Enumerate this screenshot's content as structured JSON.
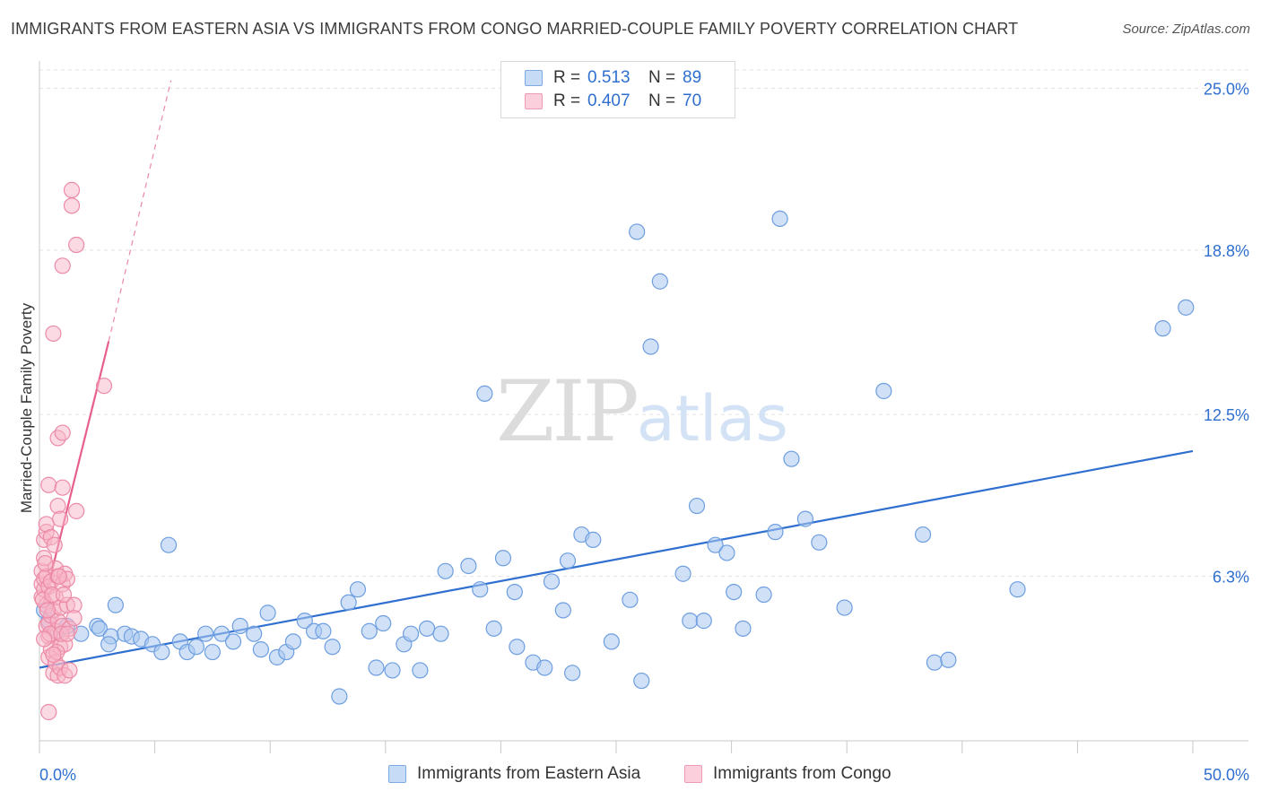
{
  "header": {
    "title": "IMMIGRANTS FROM EASTERN ASIA VS IMMIGRANTS FROM CONGO MARRIED-COUPLE FAMILY POVERTY CORRELATION CHART",
    "source": "Source: ZipAtlas.com"
  },
  "watermark": {
    "zip": "ZIP",
    "atlas": "atlas"
  },
  "legend": {
    "rows": [
      {
        "r_label": "R =",
        "r_value": "0.513",
        "n_label": "N =",
        "n_value": "89",
        "color": "#a9c8f0"
      },
      {
        "r_label": "R =",
        "r_value": "0.407",
        "n_label": "N =",
        "n_value": "70",
        "color": "#f7b6c8"
      }
    ]
  },
  "bottom_legend": {
    "items": [
      {
        "label": "Immigrants from Eastern Asia",
        "color": "#a9c8f0"
      },
      {
        "label": "Immigrants from Congo",
        "color": "#f7b6c8"
      }
    ]
  },
  "chart_data": {
    "type": "scatter",
    "title": "IMMIGRANTS FROM EASTERN ASIA VS IMMIGRANTS FROM CONGO MARRIED-COUPLE FAMILY POVERTY CORRELATION CHART",
    "xlabel": "",
    "ylabel": "Married-Couple Family Poverty",
    "xlim": [
      0,
      50
    ],
    "ylim": [
      0,
      25.7
    ],
    "x_tick_labels": [
      "0.0%",
      "50.0%"
    ],
    "y_ticks": [
      6.3,
      12.5,
      18.8,
      25.0
    ],
    "y_tick_labels": [
      "6.3%",
      "12.5%",
      "18.8%",
      "25.0%"
    ],
    "grid": true,
    "legend_position": "top-center",
    "colors": {
      "blue_fill": "#a9c8f0",
      "blue_stroke": "#6d9ee0",
      "blue_line": "#2f6fd0",
      "pink_fill": "#f7b6c8",
      "pink_stroke": "#ec8aa7",
      "pink_line": "#e85f8c",
      "tick_label": "#2f6fd0"
    },
    "series": [
      {
        "name": "Immigrants from Eastern Asia",
        "r": 0.513,
        "n": 89,
        "trend": {
          "x": [
            0,
            50
          ],
          "y": [
            2.8,
            11.1
          ]
        },
        "points": [
          [
            0.2,
            5.0
          ],
          [
            0.4,
            4.6
          ],
          [
            0.8,
            4.2
          ],
          [
            1.2,
            4.4
          ],
          [
            1.8,
            4.1
          ],
          [
            2.5,
            4.4
          ],
          [
            2.6,
            4.3
          ],
          [
            3.1,
            4.0
          ],
          [
            3.0,
            3.7
          ],
          [
            3.3,
            5.2
          ],
          [
            3.7,
            4.1
          ],
          [
            4.0,
            4.0
          ],
          [
            4.4,
            3.9
          ],
          [
            4.9,
            3.7
          ],
          [
            5.3,
            3.4
          ],
          [
            5.6,
            7.5
          ],
          [
            6.1,
            3.8
          ],
          [
            6.4,
            3.4
          ],
          [
            6.8,
            3.6
          ],
          [
            7.2,
            4.1
          ],
          [
            7.5,
            3.4
          ],
          [
            7.9,
            4.1
          ],
          [
            8.4,
            3.8
          ],
          [
            8.7,
            4.4
          ],
          [
            9.3,
            4.1
          ],
          [
            9.6,
            3.5
          ],
          [
            9.9,
            4.9
          ],
          [
            10.3,
            3.2
          ],
          [
            10.7,
            3.4
          ],
          [
            11.0,
            3.8
          ],
          [
            11.5,
            4.6
          ],
          [
            11.9,
            4.2
          ],
          [
            12.3,
            4.2
          ],
          [
            12.7,
            3.6
          ],
          [
            13.0,
            1.7
          ],
          [
            13.4,
            5.3
          ],
          [
            13.8,
            5.8
          ],
          [
            14.3,
            4.2
          ],
          [
            14.6,
            2.8
          ],
          [
            14.9,
            4.5
          ],
          [
            15.3,
            2.7
          ],
          [
            15.8,
            3.7
          ],
          [
            16.1,
            4.1
          ],
          [
            16.5,
            2.7
          ],
          [
            16.8,
            4.3
          ],
          [
            17.4,
            4.1
          ],
          [
            17.6,
            6.5
          ],
          [
            18.6,
            6.7
          ],
          [
            19.1,
            5.8
          ],
          [
            19.3,
            13.3
          ],
          [
            19.7,
            4.3
          ],
          [
            20.1,
            7.0
          ],
          [
            20.6,
            5.7
          ],
          [
            20.7,
            3.6
          ],
          [
            21.4,
            3.0
          ],
          [
            21.9,
            2.8
          ],
          [
            22.2,
            6.1
          ],
          [
            22.7,
            5.0
          ],
          [
            22.9,
            6.9
          ],
          [
            23.1,
            2.6
          ],
          [
            23.5,
            7.9
          ],
          [
            24.0,
            7.7
          ],
          [
            24.8,
            3.8
          ],
          [
            25.6,
            5.4
          ],
          [
            25.9,
            19.5
          ],
          [
            26.1,
            2.3
          ],
          [
            26.5,
            15.1
          ],
          [
            26.9,
            17.6
          ],
          [
            27.9,
            6.4
          ],
          [
            28.2,
            4.6
          ],
          [
            28.5,
            9.0
          ],
          [
            28.8,
            4.6
          ],
          [
            29.3,
            7.5
          ],
          [
            29.8,
            7.2
          ],
          [
            30.1,
            5.7
          ],
          [
            30.5,
            4.3
          ],
          [
            31.4,
            5.6
          ],
          [
            31.9,
            8.0
          ],
          [
            32.6,
            10.8
          ],
          [
            32.1,
            20.0
          ],
          [
            33.2,
            8.5
          ],
          [
            33.8,
            7.6
          ],
          [
            34.9,
            5.1
          ],
          [
            36.6,
            13.4
          ],
          [
            38.3,
            7.9
          ],
          [
            38.8,
            3.0
          ],
          [
            39.4,
            3.1
          ],
          [
            42.4,
            5.8
          ],
          [
            48.7,
            15.8
          ],
          [
            49.7,
            16.6
          ]
        ]
      },
      {
        "name": "Immigrants from Congo",
        "r": 0.407,
        "n": 70,
        "trend_solid": {
          "x": [
            0.2,
            3.0
          ],
          "y": [
            5.3,
            15.3
          ]
        },
        "trend_dashed": {
          "x": [
            3.0,
            5.7
          ],
          "y": [
            15.3,
            25.3
          ]
        },
        "points": [
          [
            0.1,
            5.5
          ],
          [
            0.1,
            6.0
          ],
          [
            0.1,
            6.5
          ],
          [
            0.2,
            5.8
          ],
          [
            0.2,
            6.2
          ],
          [
            0.2,
            7.0
          ],
          [
            0.2,
            7.7
          ],
          [
            0.3,
            4.4
          ],
          [
            0.3,
            5.2
          ],
          [
            0.3,
            6.3
          ],
          [
            0.3,
            8.0
          ],
          [
            0.3,
            8.3
          ],
          [
            0.4,
            3.2
          ],
          [
            0.4,
            4.0
          ],
          [
            0.4,
            4.5
          ],
          [
            0.4,
            5.9
          ],
          [
            0.4,
            9.8
          ],
          [
            0.4,
            1.1
          ],
          [
            0.5,
            3.5
          ],
          [
            0.5,
            4.8
          ],
          [
            0.5,
            6.1
          ],
          [
            0.5,
            7.8
          ],
          [
            0.6,
            2.6
          ],
          [
            0.6,
            5.0
          ],
          [
            0.6,
            15.6
          ],
          [
            0.7,
            3.0
          ],
          [
            0.7,
            4.2
          ],
          [
            0.7,
            5.5
          ],
          [
            0.7,
            6.6
          ],
          [
            0.8,
            2.5
          ],
          [
            0.8,
            4.6
          ],
          [
            0.8,
            6.3
          ],
          [
            0.8,
            9.0
          ],
          [
            0.8,
            11.6
          ],
          [
            0.9,
            2.8
          ],
          [
            0.9,
            3.6
          ],
          [
            0.9,
            5.1
          ],
          [
            0.9,
            8.5
          ],
          [
            1.0,
            4.4
          ],
          [
            1.0,
            6.0
          ],
          [
            1.0,
            9.7
          ],
          [
            1.0,
            11.8
          ],
          [
            1.0,
            18.2
          ],
          [
            1.1,
            2.5
          ],
          [
            1.1,
            3.7
          ],
          [
            1.1,
            6.4
          ],
          [
            1.2,
            5.2
          ],
          [
            1.2,
            6.2
          ],
          [
            1.3,
            4.3
          ],
          [
            1.3,
            2.7
          ],
          [
            1.4,
            21.1
          ],
          [
            1.4,
            20.5
          ],
          [
            1.5,
            5.2
          ],
          [
            1.5,
            4.7
          ],
          [
            1.6,
            19.0
          ],
          [
            1.6,
            8.8
          ],
          [
            2.8,
            13.6
          ],
          [
            0.15,
            5.4
          ],
          [
            0.25,
            6.8
          ],
          [
            0.35,
            5.0
          ],
          [
            0.45,
            4.1
          ],
          [
            0.55,
            5.6
          ],
          [
            0.65,
            7.5
          ],
          [
            0.75,
            3.4
          ],
          [
            0.85,
            6.3
          ],
          [
            0.95,
            4.1
          ],
          [
            1.05,
            5.6
          ],
          [
            0.2,
            3.9
          ],
          [
            0.6,
            3.3
          ],
          [
            1.2,
            4.1
          ]
        ]
      }
    ]
  }
}
